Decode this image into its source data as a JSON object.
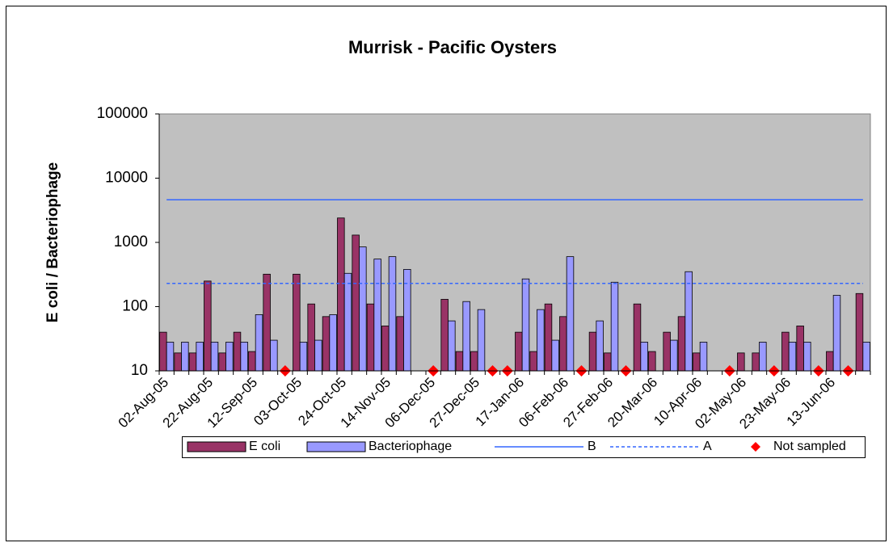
{
  "chart_data": {
    "type": "bar",
    "title": "Murrisk - Pacific Oysters",
    "y_label": "E coli / Bacteriophage",
    "log_y": true,
    "ylim": [
      10,
      100000
    ],
    "yticks": [
      10,
      100,
      1000,
      10000,
      100000
    ],
    "legend": "bottom",
    "categories": [
      "02-Aug-05",
      null,
      null,
      "22-Aug-05",
      null,
      null,
      "12-Sep-05",
      null,
      null,
      "03-Oct-05",
      null,
      null,
      "24-Oct-05",
      null,
      null,
      "14-Nov-05",
      null,
      null,
      "06-Dec-05",
      null,
      null,
      "27-Dec-05",
      null,
      null,
      "17-Jan-06",
      null,
      null,
      "06-Feb-06",
      null,
      null,
      "27-Feb-06",
      null,
      null,
      "20-Mar-06",
      null,
      null,
      "10-Apr-06",
      null,
      null,
      "02-May-06",
      null,
      null,
      "23-May-06",
      null,
      null,
      "13-Jun-06",
      null,
      null
    ],
    "series": [
      {
        "name": "E coli",
        "type": "bar",
        "color": "#993366",
        "values": [
          40,
          19,
          19,
          250,
          19,
          40,
          20,
          320,
          null,
          320,
          110,
          70,
          2400,
          1300,
          110,
          50,
          70,
          null,
          null,
          130,
          20,
          20,
          null,
          null,
          40,
          20,
          110,
          70,
          null,
          40,
          19,
          null,
          110,
          20,
          40,
          70,
          19,
          null,
          null,
          19,
          19,
          null,
          40,
          50,
          null,
          20,
          null,
          160
        ]
      },
      {
        "name": "Bacteriophage",
        "type": "bar",
        "color": "#9999ff",
        "values": [
          28,
          28,
          28,
          28,
          28,
          28,
          75,
          30,
          null,
          28,
          30,
          75,
          330,
          850,
          550,
          600,
          380,
          null,
          null,
          60,
          120,
          90,
          null,
          null,
          270,
          90,
          30,
          600,
          null,
          60,
          240,
          null,
          28,
          null,
          30,
          350,
          28,
          null,
          null,
          null,
          28,
          null,
          28,
          28,
          null,
          150,
          null,
          28
        ]
      },
      {
        "name": "B",
        "type": "line",
        "color": "#3366ff",
        "linestyle": "solid",
        "values": [
          4600,
          4600,
          4600,
          4600,
          4600,
          4600,
          4600,
          4600,
          4600,
          4600,
          4600,
          4600,
          4600,
          4600,
          4600,
          4600,
          4600,
          4600,
          4600,
          4600,
          4600,
          4600,
          4600,
          4600,
          4600,
          4600,
          4600,
          4600,
          4600,
          4600,
          4600,
          4600,
          4600,
          4600,
          4600,
          4600,
          4600,
          4600,
          4600,
          4600,
          4600,
          4600,
          4600,
          4600,
          4600,
          4600,
          4600,
          4600
        ]
      },
      {
        "name": "A",
        "type": "line",
        "color": "#3366ff",
        "linestyle": "dashed",
        "values": [
          230,
          230,
          230,
          230,
          230,
          230,
          230,
          230,
          230,
          230,
          230,
          230,
          230,
          230,
          230,
          230,
          230,
          230,
          230,
          230,
          230,
          230,
          230,
          230,
          230,
          230,
          230,
          230,
          230,
          230,
          230,
          230,
          230,
          230,
          230,
          230,
          230,
          230,
          230,
          230,
          230,
          230,
          230,
          230,
          230,
          230,
          230,
          230
        ]
      },
      {
        "name": "Not sampled",
        "type": "scatter",
        "color": "#ff0000",
        "values": [
          null,
          null,
          null,
          null,
          null,
          null,
          null,
          null,
          10,
          null,
          null,
          null,
          null,
          null,
          null,
          null,
          null,
          null,
          10,
          null,
          null,
          null,
          10,
          10,
          null,
          null,
          null,
          null,
          10,
          null,
          null,
          10,
          null,
          null,
          null,
          null,
          null,
          null,
          10,
          null,
          null,
          10,
          null,
          null,
          10,
          null,
          10,
          null
        ]
      }
    ]
  }
}
